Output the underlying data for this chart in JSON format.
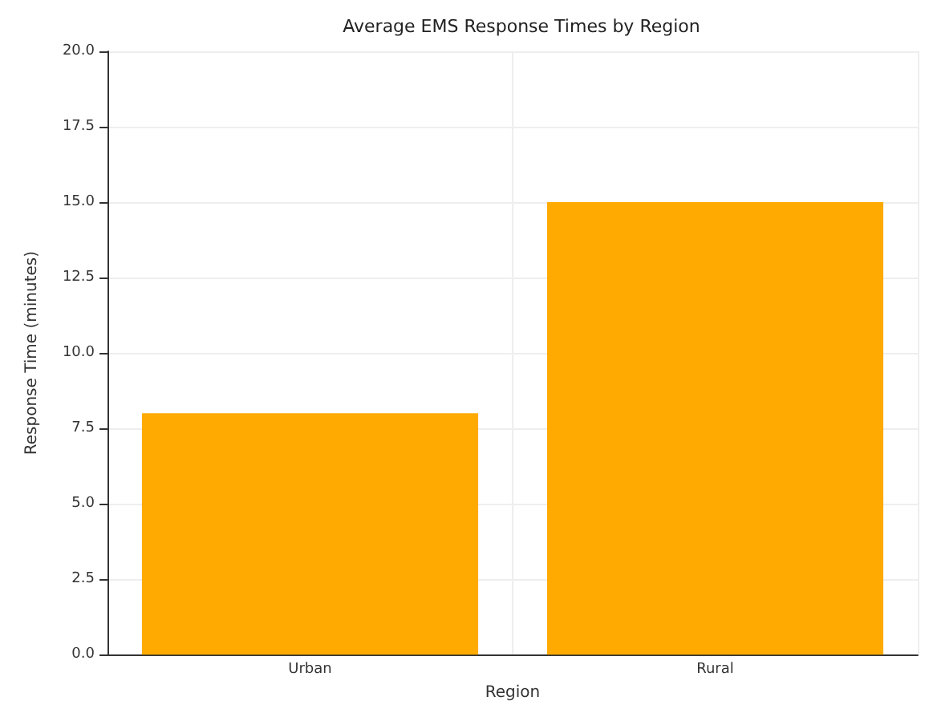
{
  "chart_data": {
    "type": "bar",
    "title": "Average EMS Response Times by Region",
    "xlabel": "Region",
    "ylabel": "Response Time (minutes)",
    "categories": [
      "Urban",
      "Rural"
    ],
    "values": [
      8,
      15
    ],
    "color": "#ffaa00",
    "ylim": [
      0,
      20
    ],
    "yticks": [
      {
        "value": 0,
        "label": "0.0"
      },
      {
        "value": 2.5,
        "label": "2.5"
      },
      {
        "value": 5,
        "label": "5.0"
      },
      {
        "value": 7.5,
        "label": "7.5"
      },
      {
        "value": 10,
        "label": "10.0"
      },
      {
        "value": 12.5,
        "label": "12.5"
      },
      {
        "value": 15,
        "label": "15.0"
      },
      {
        "value": 17.5,
        "label": "17.5"
      },
      {
        "value": 20,
        "label": "20.0"
      }
    ],
    "grid": true
  }
}
